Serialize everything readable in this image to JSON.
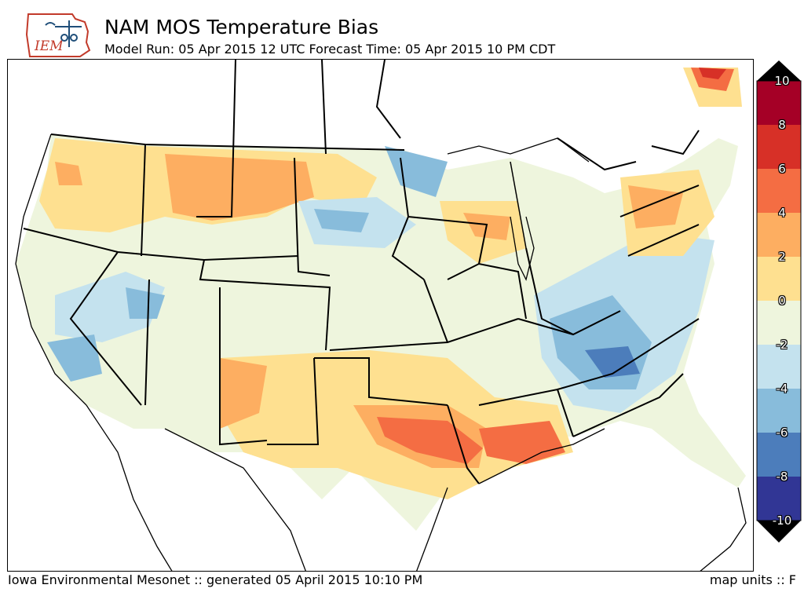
{
  "header": {
    "logo_text": "IEM",
    "title": "NAM MOS Temperature Bias",
    "subtitle": "Model Run: 05 Apr 2015 12 UTC Forecast Time: 05 Apr 2015 10 PM CDT"
  },
  "footer": {
    "left": "Iowa Environmental Mesonet :: generated 05 April 2015 10:10 PM",
    "right": "map units :: F"
  },
  "colorbar": {
    "labels": [
      "10",
      "8",
      "6",
      "4",
      "2",
      "0",
      "-2",
      "-4",
      "-6",
      "-8",
      "-10"
    ],
    "bins": [
      {
        "range": "8 to 10",
        "color": "#a50026"
      },
      {
        "range": "6 to 8",
        "color": "#d73027"
      },
      {
        "range": "4 to 6",
        "color": "#f46d43"
      },
      {
        "range": "2 to 4",
        "color": "#fdae61"
      },
      {
        "range": "0 to 2",
        "color": "#fee090"
      },
      {
        "range": "-2 to 0",
        "color": "#eef5dd"
      },
      {
        "range": "-4 to -2",
        "color": "#c4e2ee"
      },
      {
        "range": "-6 to -4",
        "color": "#88bcdb"
      },
      {
        "range": "-8 to -6",
        "color": "#4c7dbb"
      },
      {
        "range": "-10 to -8",
        "color": "#313695"
      }
    ],
    "over_color": "#000000",
    "under_color": "#000000"
  }
}
